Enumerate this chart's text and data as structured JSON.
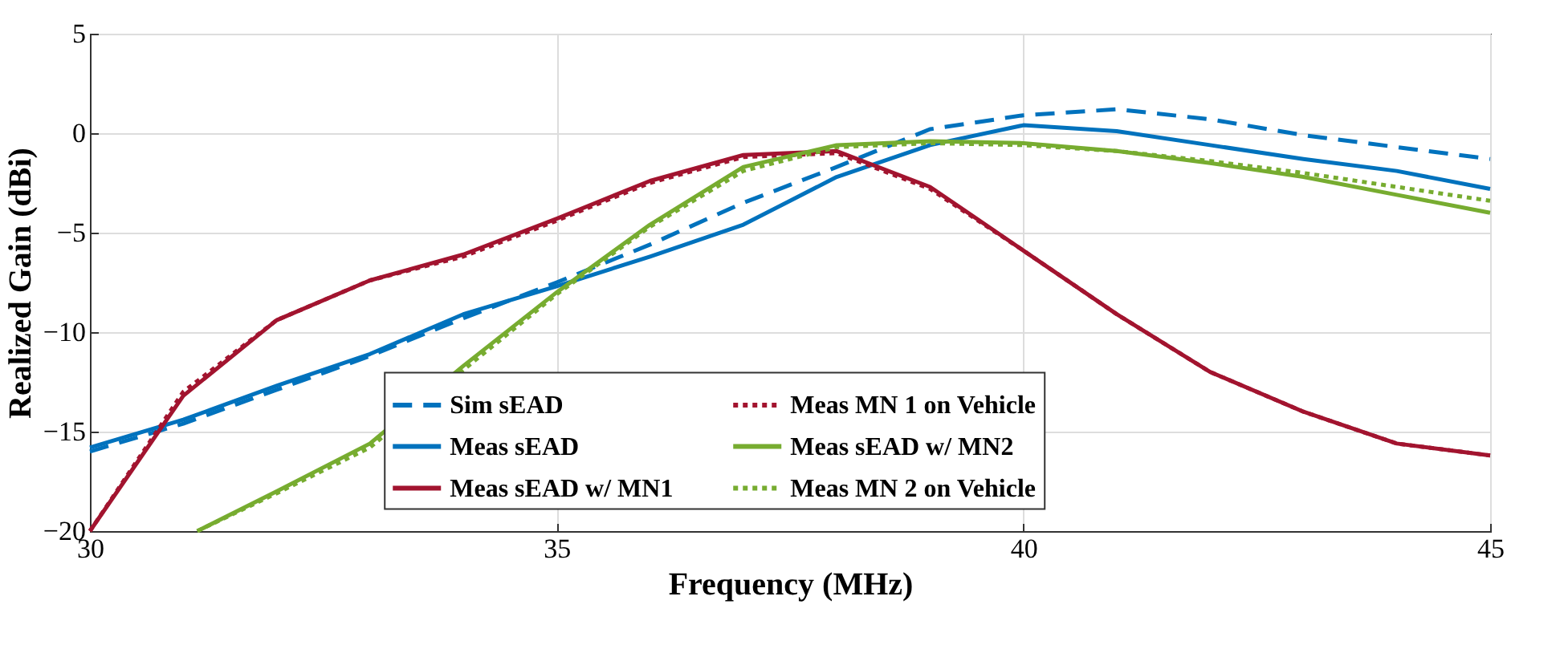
{
  "chart_data": {
    "type": "line",
    "xlabel": "Frequency (MHz)",
    "ylabel": "Realized Gain (dBi)",
    "x": [
      30,
      31,
      32,
      33,
      34,
      35,
      36,
      37,
      38,
      39,
      40,
      41,
      42,
      43,
      44,
      45
    ],
    "xlim": [
      30,
      45
    ],
    "xticks": [
      30,
      35,
      40,
      45
    ],
    "ylim": [
      -20,
      5
    ],
    "yticks": [
      -20,
      -15,
      -10,
      -5,
      0,
      5
    ],
    "grid": true,
    "legend": "bottom",
    "series": [
      {
        "name": "Sim sEAD",
        "color": "#0072bd",
        "line_style": "dashed",
        "values": [
          -16,
          -14.6,
          -12.9,
          -11.2,
          -9.3,
          -7.5,
          -5.6,
          -3.5,
          -1.7,
          0.2,
          0.9,
          1.2,
          0.7,
          -0.1,
          -0.7,
          -1.3
        ]
      },
      {
        "name": "Meas sEAD",
        "color": "#0072bd",
        "line_style": "solid",
        "values": [
          -15.8,
          -14.4,
          -12.7,
          -11.1,
          -9.1,
          -7.7,
          -6.2,
          -4.6,
          -2.2,
          -0.6,
          0.4,
          0.1,
          -0.6,
          -1.3,
          -1.9,
          -2.8
        ]
      },
      {
        "name": "Meas sEAD w/ MN1",
        "color": "#a2142f",
        "line_style": "solid",
        "values": [
          -20,
          -13.2,
          -9.4,
          -7.4,
          -6.1,
          -4.3,
          -2.4,
          -1.1,
          -0.9,
          -2.7,
          -5.9,
          -9.1,
          -12,
          -14,
          -15.6,
          -16.2
        ]
      },
      {
        "name": "Meas MN 1 on Vehicle",
        "color": "#a2142f",
        "line_style": "dotted",
        "values": [
          -20,
          -13,
          -9.4,
          -7.4,
          -6.2,
          -4.4,
          -2.5,
          -1.2,
          -1,
          -2.8,
          -5.9,
          -9.1,
          -12,
          -14,
          -15.6,
          -16.2
        ]
      },
      {
        "name": "Meas sEAD w/ MN2",
        "color": "#77ac30",
        "line_style": "solid",
        "x": [
          31.15,
          32,
          33,
          34,
          35,
          36,
          37,
          38,
          39,
          40,
          41,
          42,
          43,
          44,
          45
        ],
        "values": [
          -20,
          -18,
          -15.6,
          -11.7,
          -8,
          -4.6,
          -1.7,
          -0.6,
          -0.4,
          -0.5,
          -0.9,
          -1.5,
          -2.2,
          -3.1,
          -4
        ]
      },
      {
        "name": "Meas MN 2 on Vehicle",
        "color": "#77ac30",
        "line_style": "dotted",
        "x": [
          31.15,
          32,
          33,
          34,
          35,
          36,
          37,
          38,
          39,
          40,
          41,
          42,
          43,
          44,
          45
        ],
        "values": [
          -20,
          -18.1,
          -15.8,
          -11.9,
          -8.1,
          -4.7,
          -1.9,
          -0.7,
          -0.5,
          -0.6,
          -0.9,
          -1.4,
          -2,
          -2.7,
          -3.4
        ]
      }
    ]
  }
}
